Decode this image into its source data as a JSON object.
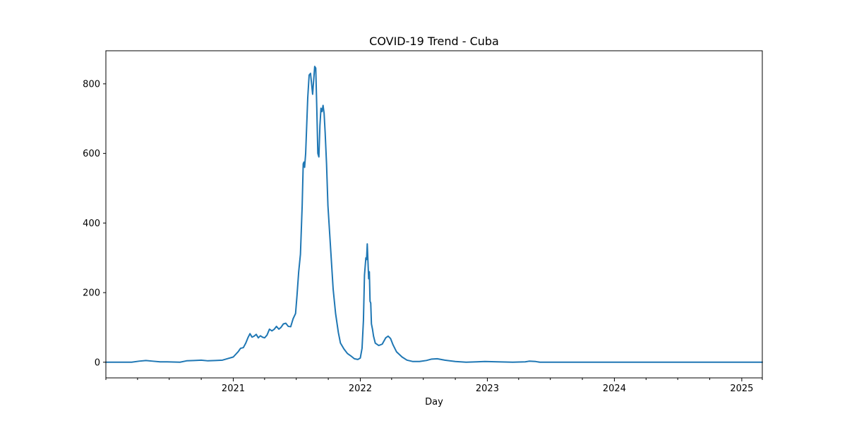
{
  "chart_data": {
    "type": "line",
    "title": "COVID-19 Trend - Cuba",
    "xlabel": "Day",
    "ylabel": "",
    "grid": false,
    "legend": "none",
    "xlim": [
      "2020-01-01",
      "2025-03-01"
    ],
    "ylim": [
      -45,
      895
    ],
    "x_ticks": [
      {
        "date": "2021-01-01",
        "label": "2021"
      },
      {
        "date": "2022-01-01",
        "label": "2022"
      },
      {
        "date": "2023-01-01",
        "label": "2023"
      },
      {
        "date": "2024-01-01",
        "label": "2024"
      },
      {
        "date": "2025-01-01",
        "label": "2025"
      }
    ],
    "x_minor_ticks": [
      "2020-01-01",
      "2020-04-01",
      "2020-07-01",
      "2020-10-01",
      "2021-04-01",
      "2021-07-01",
      "2021-10-01",
      "2022-04-01",
      "2022-07-01",
      "2022-10-01",
      "2023-04-01",
      "2023-07-01",
      "2023-10-01",
      "2024-04-01",
      "2024-07-01",
      "2024-10-01",
      "2025-03-01"
    ],
    "y_ticks": [
      0,
      200,
      400,
      600,
      800
    ],
    "series": [
      {
        "color": "#1f77b4",
        "points": [
          [
            "2020-01-01",
            0
          ],
          [
            "2020-03-15",
            0
          ],
          [
            "2020-04-05",
            3
          ],
          [
            "2020-04-25",
            5
          ],
          [
            "2020-05-15",
            3
          ],
          [
            "2020-06-05",
            1
          ],
          [
            "2020-06-25",
            1
          ],
          [
            "2020-08-01",
            0
          ],
          [
            "2020-08-20",
            4
          ],
          [
            "2020-09-10",
            5
          ],
          [
            "2020-10-01",
            6
          ],
          [
            "2020-10-20",
            4
          ],
          [
            "2020-11-10",
            5
          ],
          [
            "2020-12-01",
            6
          ],
          [
            "2020-12-15",
            10
          ],
          [
            "2021-01-01",
            15
          ],
          [
            "2021-01-15",
            30
          ],
          [
            "2021-01-22",
            40
          ],
          [
            "2021-01-30",
            42
          ],
          [
            "2021-02-06",
            55
          ],
          [
            "2021-02-12",
            70
          ],
          [
            "2021-02-18",
            82
          ],
          [
            "2021-02-24",
            72
          ],
          [
            "2021-03-02",
            75
          ],
          [
            "2021-03-08",
            80
          ],
          [
            "2021-03-14",
            70
          ],
          [
            "2021-03-20",
            76
          ],
          [
            "2021-03-26",
            72
          ],
          [
            "2021-04-01",
            70
          ],
          [
            "2021-04-08",
            78
          ],
          [
            "2021-04-15",
            95
          ],
          [
            "2021-04-22",
            90
          ],
          [
            "2021-04-29",
            95
          ],
          [
            "2021-05-05",
            103
          ],
          [
            "2021-05-12",
            95
          ],
          [
            "2021-05-18",
            100
          ],
          [
            "2021-05-25",
            110
          ],
          [
            "2021-06-01",
            112
          ],
          [
            "2021-06-08",
            103
          ],
          [
            "2021-06-15",
            102
          ],
          [
            "2021-06-22",
            125
          ],
          [
            "2021-06-29",
            140
          ],
          [
            "2021-07-03",
            190
          ],
          [
            "2021-07-08",
            260
          ],
          [
            "2021-07-13",
            310
          ],
          [
            "2021-07-18",
            450
          ],
          [
            "2021-07-21",
            570
          ],
          [
            "2021-07-23",
            575
          ],
          [
            "2021-07-25",
            560
          ],
          [
            "2021-07-28",
            600
          ],
          [
            "2021-07-31",
            680
          ],
          [
            "2021-08-03",
            760
          ],
          [
            "2021-08-07",
            825
          ],
          [
            "2021-08-11",
            830
          ],
          [
            "2021-08-14",
            800
          ],
          [
            "2021-08-17",
            770
          ],
          [
            "2021-08-20",
            810
          ],
          [
            "2021-08-23",
            850
          ],
          [
            "2021-08-26",
            845
          ],
          [
            "2021-08-29",
            730
          ],
          [
            "2021-09-01",
            600
          ],
          [
            "2021-09-04",
            590
          ],
          [
            "2021-09-07",
            680
          ],
          [
            "2021-09-10",
            730
          ],
          [
            "2021-09-13",
            720
          ],
          [
            "2021-09-16",
            738
          ],
          [
            "2021-09-19",
            715
          ],
          [
            "2021-09-22",
            660
          ],
          [
            "2021-09-26",
            570
          ],
          [
            "2021-09-30",
            450
          ],
          [
            "2021-10-05",
            370
          ],
          [
            "2021-10-10",
            290
          ],
          [
            "2021-10-15",
            210
          ],
          [
            "2021-10-22",
            140
          ],
          [
            "2021-10-30",
            85
          ],
          [
            "2021-11-05",
            55
          ],
          [
            "2021-11-15",
            38
          ],
          [
            "2021-11-25",
            25
          ],
          [
            "2021-12-05",
            18
          ],
          [
            "2021-12-15",
            10
          ],
          [
            "2021-12-25",
            8
          ],
          [
            "2022-01-01",
            12
          ],
          [
            "2022-01-06",
            40
          ],
          [
            "2022-01-10",
            120
          ],
          [
            "2022-01-13",
            250
          ],
          [
            "2022-01-15",
            275
          ],
          [
            "2022-01-17",
            300
          ],
          [
            "2022-01-19",
            295
          ],
          [
            "2022-01-21",
            340
          ],
          [
            "2022-01-23",
            290
          ],
          [
            "2022-01-25",
            240
          ],
          [
            "2022-01-27",
            260
          ],
          [
            "2022-01-29",
            175
          ],
          [
            "2022-01-31",
            170
          ],
          [
            "2022-02-02",
            110
          ],
          [
            "2022-02-05",
            95
          ],
          [
            "2022-02-08",
            75
          ],
          [
            "2022-02-13",
            55
          ],
          [
            "2022-02-23",
            48
          ],
          [
            "2022-03-05",
            52
          ],
          [
            "2022-03-15",
            70
          ],
          [
            "2022-03-22",
            75
          ],
          [
            "2022-03-29",
            68
          ],
          [
            "2022-04-05",
            50
          ],
          [
            "2022-04-15",
            30
          ],
          [
            "2022-05-01",
            15
          ],
          [
            "2022-05-15",
            6
          ],
          [
            "2022-06-01",
            2
          ],
          [
            "2022-06-20",
            2
          ],
          [
            "2022-07-10",
            5
          ],
          [
            "2022-07-25",
            9
          ],
          [
            "2022-08-10",
            10
          ],
          [
            "2022-09-01",
            6
          ],
          [
            "2022-10-01",
            2
          ],
          [
            "2022-11-01",
            0
          ],
          [
            "2022-12-01",
            1
          ],
          [
            "2022-12-25",
            2
          ],
          [
            "2023-02-01",
            1
          ],
          [
            "2023-03-15",
            0
          ],
          [
            "2023-04-20",
            1
          ],
          [
            "2023-05-01",
            3
          ],
          [
            "2023-05-20",
            2
          ],
          [
            "2023-06-01",
            0
          ],
          [
            "2024-01-01",
            0
          ],
          [
            "2025-03-01",
            0
          ]
        ]
      }
    ]
  }
}
